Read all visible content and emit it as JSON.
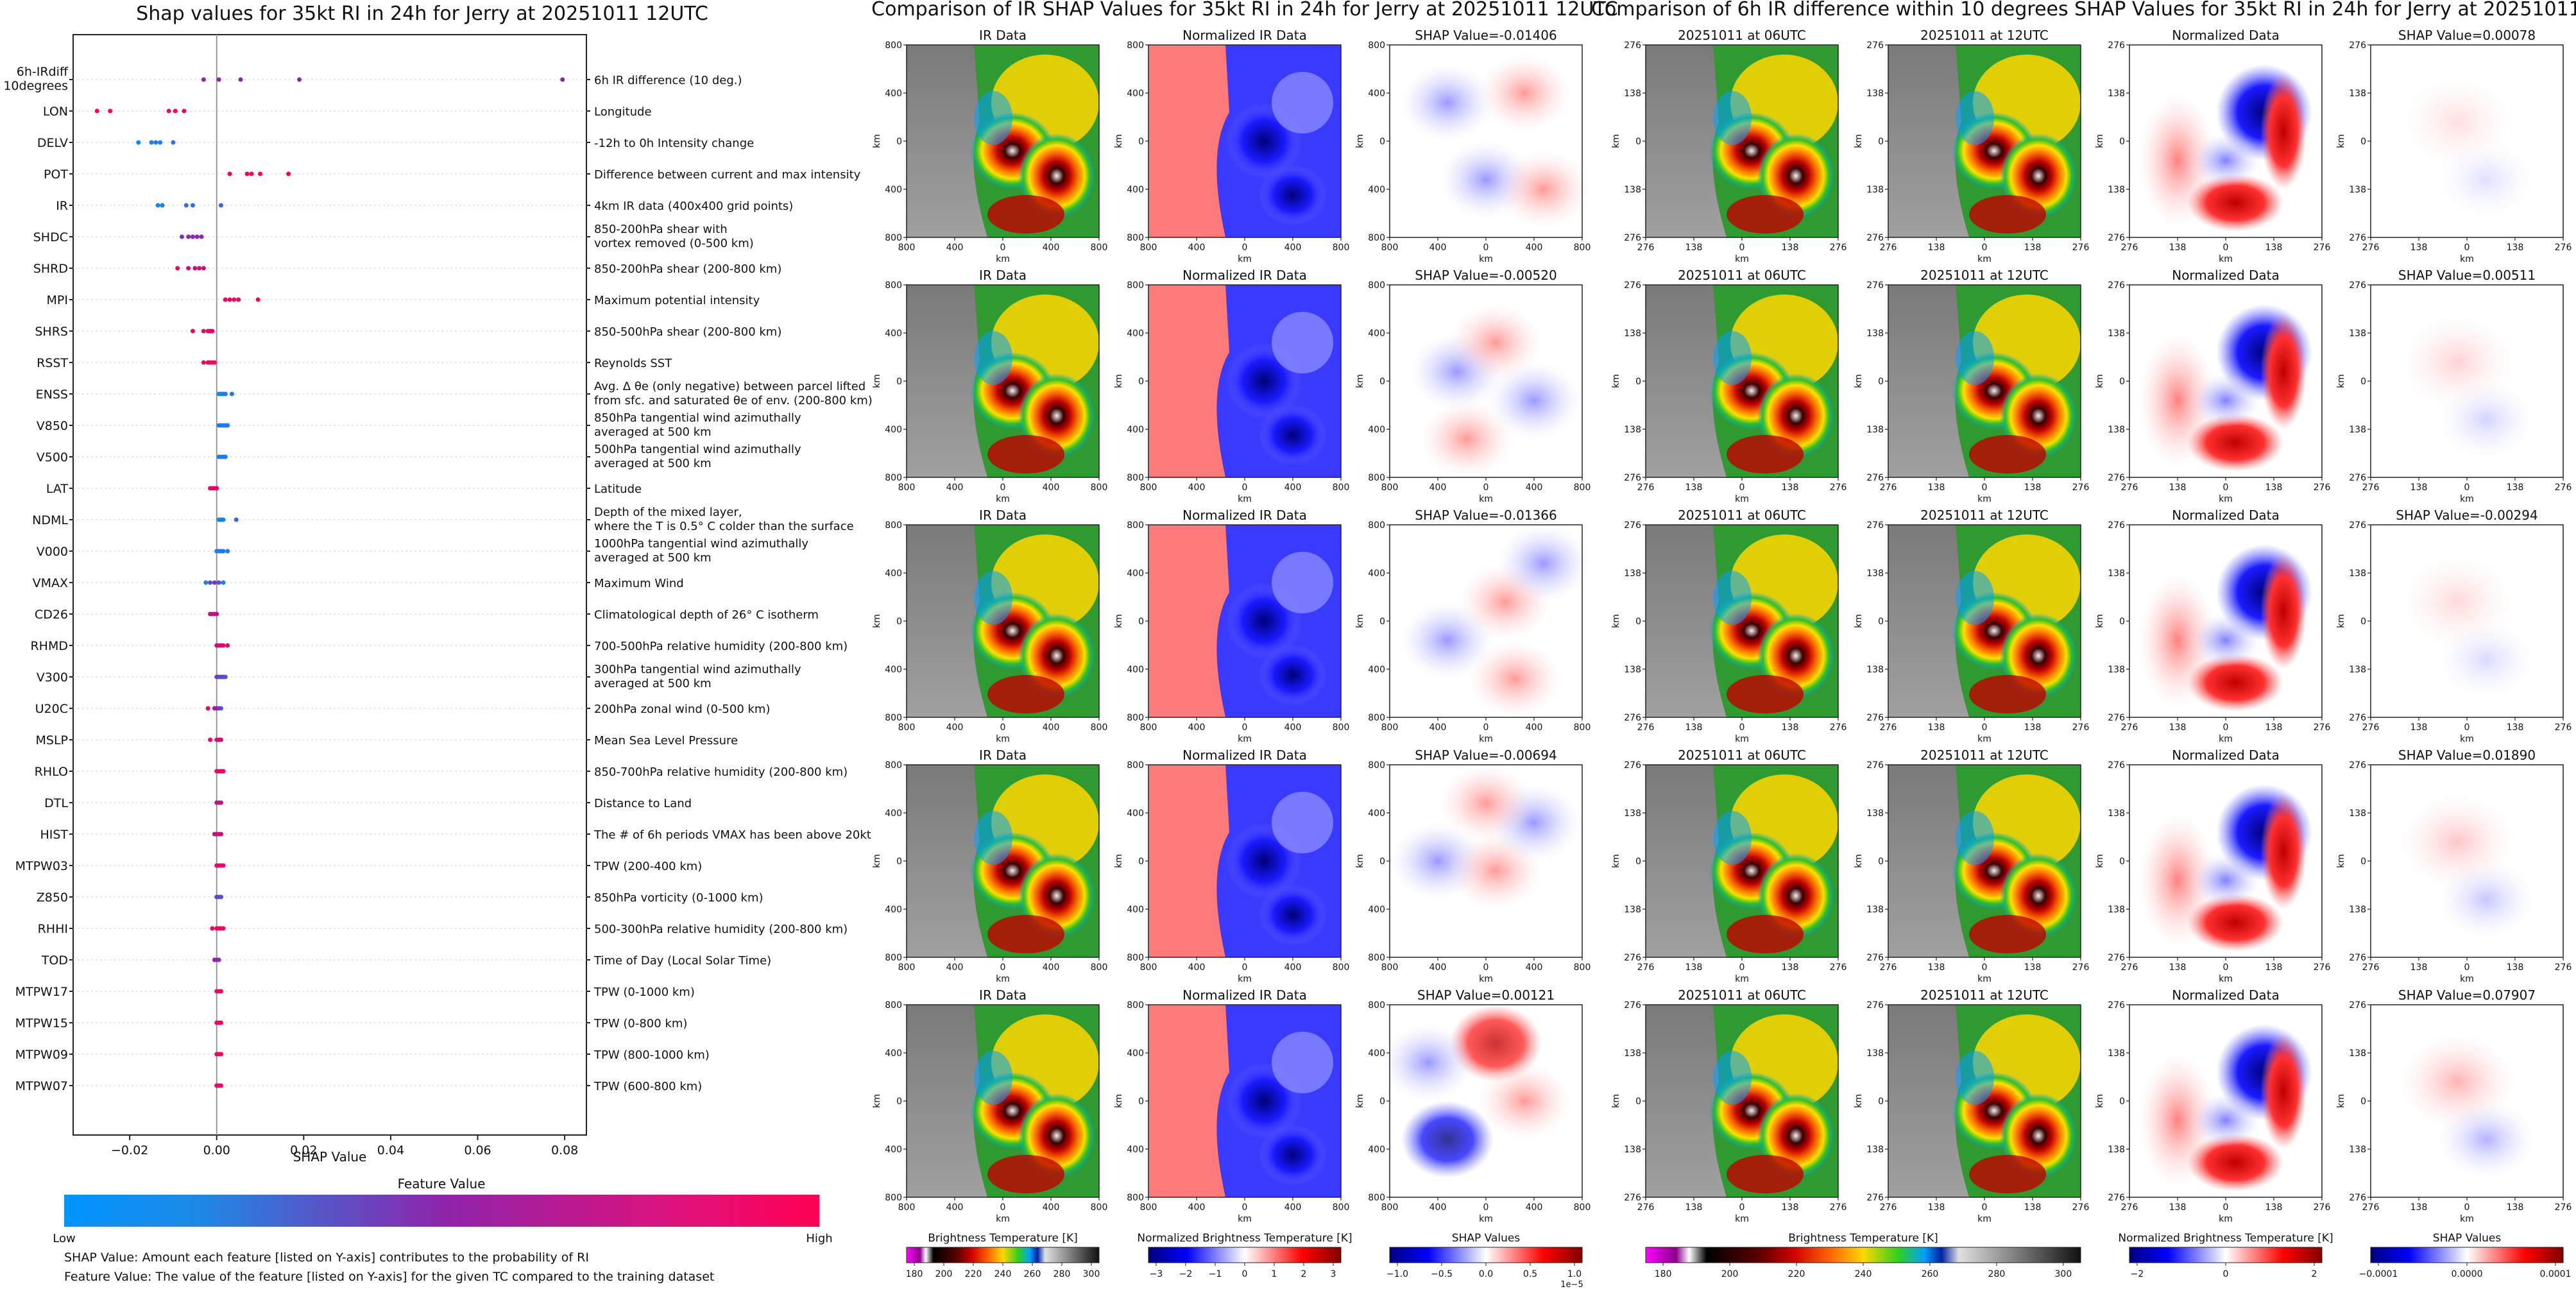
{
  "summary_plot": {
    "title": "Shap values for 35kt RI in 24h for Jerry at 20251011 12UTC",
    "xlabel": "SHAP Value",
    "xticks": [
      "−0.02",
      "0.00",
      "0.02",
      "0.04",
      "0.06",
      "0.08"
    ],
    "colorbar_title": "Feature Value",
    "colorbar_low": "Low",
    "colorbar_high": "High",
    "note_shap": "SHAP Value: Amount each feature [listed on Y-axis] contributes to the probability of RI",
    "note_feature": "Feature Value: The value of the feature [listed on Y-axis] for the given TC compared to the training dataset"
  },
  "ir_panel": {
    "title": "Comparison of IR SHAP Values for 35kt RI in 24h for Jerry at 20251011 12UTC",
    "col1_title": "IR Data",
    "col2_title": "Normalized IR Data",
    "shap_titles": [
      "SHAP Value=-0.01406",
      "SHAP Value=-0.00520",
      "SHAP Value=-0.01366",
      "SHAP Value=-0.00694",
      "SHAP Value=0.00121"
    ],
    "ticks": [
      "800",
      "400",
      "0",
      "400",
      "800"
    ],
    "axis_unit": "km",
    "cb1_label": "Brightness Temperature [K]",
    "cb1_ticks": [
      "180",
      "200",
      "220",
      "240",
      "260",
      "280",
      "300"
    ],
    "cb2_label": "Normalized Brightness Temperature [K]",
    "cb2_ticks": [
      "−3",
      "−2",
      "−1",
      "0",
      "1",
      "2",
      "3"
    ],
    "cb3_label": "SHAP Values",
    "cb3_ticks": [
      "−1.0",
      "−0.5",
      "0.0",
      "0.5",
      "1.0"
    ],
    "cb3_exp": "1e−5"
  },
  "diff_panel": {
    "title": "Comparison of 6h IR difference within 10 degrees SHAP Values for 35kt RI in 24h for Jerry at 20251011 12UTC",
    "col1_title": "20251011 at 06UTC",
    "col2_title": "20251011 at 12UTC",
    "col3_title": "Normalized Data",
    "shap_titles": [
      "SHAP Value=0.00078",
      "SHAP Value=0.00511",
      "SHAP Value=-0.00294",
      "SHAP Value=0.01890",
      "SHAP Value=0.07907"
    ],
    "ticks": [
      "276",
      "138",
      "0",
      "138",
      "276"
    ],
    "axis_unit": "km",
    "cb1_label": "Brightness Temperature [K]",
    "cb1_ticks": [
      "180",
      "200",
      "220",
      "240",
      "260",
      "280",
      "300"
    ],
    "cb2_label": "Normalized Brightness Temperature [K]",
    "cb2_ticks": [
      "−2",
      "0",
      "2"
    ],
    "cb3_label": "SHAP Values",
    "cb3_ticks": [
      "−0.0001",
      "0.0000",
      "0.0001"
    ]
  },
  "colors": {
    "low": "#1e88e5",
    "mid": "#8e24aa",
    "high": "#ff0052",
    "zero_line": "#999999"
  },
  "chart_data": [
    {
      "type": "scatter",
      "title": "Shap values for 35kt RI in 24h for Jerry at 20251011 12UTC",
      "xlabel": "SHAP Value",
      "xlim": [
        -0.033,
        0.085
      ],
      "features": [
        {
          "name": "6h-IRdiff\n10degrees",
          "desc": "6h IR difference (10 deg.)",
          "points": [
            [
              -0.003,
              0.5
            ],
            [
              0.0005,
              0.5
            ],
            [
              0.0055,
              0.5
            ],
            [
              0.019,
              0.5
            ],
            [
              0.0795,
              0.5
            ]
          ]
        },
        {
          "name": "LON",
          "desc": "Longitude",
          "points": [
            [
              -0.0275,
              0.98
            ],
            [
              -0.0245,
              0.95
            ],
            [
              -0.011,
              0.9
            ],
            [
              -0.0095,
              0.92
            ],
            [
              -0.0075,
              0.9
            ]
          ]
        },
        {
          "name": "DELV",
          "desc": "-12h to 0h Intensity change",
          "points": [
            [
              -0.018,
              0.05
            ],
            [
              -0.015,
              0.1
            ],
            [
              -0.014,
              0.1
            ],
            [
              -0.013,
              0.12
            ],
            [
              -0.01,
              0.15
            ]
          ]
        },
        {
          "name": "POT",
          "desc": "Difference between current and max intensity",
          "points": [
            [
              0.003,
              0.9
            ],
            [
              0.007,
              0.95
            ],
            [
              0.008,
              0.92
            ],
            [
              0.01,
              0.95
            ],
            [
              0.0165,
              0.98
            ]
          ]
        },
        {
          "name": "IR",
          "desc": "4km IR data (400x400 grid points)",
          "points": [
            [
              -0.0135,
              0.08
            ],
            [
              -0.0125,
              0.1
            ],
            [
              -0.007,
              0.15
            ],
            [
              -0.0055,
              0.15
            ],
            [
              0.001,
              0.2
            ]
          ]
        },
        {
          "name": "SHDC",
          "desc": "850-200hPa shear with\nvortex removed (0-500 km)",
          "points": [
            [
              -0.008,
              0.45
            ],
            [
              -0.0065,
              0.45
            ],
            [
              -0.0055,
              0.5
            ],
            [
              -0.0045,
              0.48
            ],
            [
              -0.0035,
              0.45
            ]
          ]
        },
        {
          "name": "SHRD",
          "desc": "850-200hPa shear (200-800 km)",
          "points": [
            [
              -0.009,
              0.95
            ],
            [
              -0.0065,
              0.8
            ],
            [
              -0.005,
              0.75
            ],
            [
              -0.004,
              0.7
            ],
            [
              -0.003,
              0.8
            ]
          ]
        },
        {
          "name": "MPI",
          "desc": "Maximum potential intensity",
          "points": [
            [
              0.002,
              0.9
            ],
            [
              0.003,
              0.9
            ],
            [
              0.004,
              0.85
            ],
            [
              0.005,
              0.9
            ],
            [
              0.0095,
              0.95
            ]
          ]
        },
        {
          "name": "SHRS",
          "desc": "850-500hPa shear (200-800 km)",
          "points": [
            [
              -0.0055,
              0.9
            ],
            [
              -0.003,
              0.85
            ],
            [
              -0.002,
              0.85
            ],
            [
              -0.0015,
              0.8
            ],
            [
              -0.001,
              0.85
            ]
          ]
        },
        {
          "name": "RSST",
          "desc": "Reynolds SST",
          "points": [
            [
              -0.003,
              0.95
            ],
            [
              -0.002,
              0.95
            ],
            [
              -0.0015,
              0.9
            ],
            [
              -0.001,
              0.92
            ],
            [
              -0.0005,
              0.95
            ]
          ]
        },
        {
          "name": "ENSS",
          "desc": "Avg. Δ θe (only negative) between parcel lifted\nfrom sfc. and saturated θe of env. (200-800 km)",
          "points": [
            [
              0.0005,
              0.05
            ],
            [
              0.001,
              0.05
            ],
            [
              0.0015,
              0.1
            ],
            [
              0.002,
              0.1
            ],
            [
              0.0035,
              0.15
            ]
          ]
        },
        {
          "name": "V850",
          "desc": "850hPa tangential wind azimuthally\naveraged at 500 km",
          "points": [
            [
              0.0005,
              0.1
            ],
            [
              0.001,
              0.1
            ],
            [
              0.0015,
              0.12
            ],
            [
              0.002,
              0.1
            ],
            [
              0.0025,
              0.12
            ]
          ]
        },
        {
          "name": "V500",
          "desc": "500hPa tangential wind azimuthally\naveraged at 500 km",
          "points": [
            [
              0.0005,
              0.1
            ],
            [
              0.001,
              0.1
            ],
            [
              0.0015,
              0.12
            ],
            [
              0.002,
              0.1
            ]
          ]
        },
        {
          "name": "LAT",
          "desc": "Latitude",
          "points": [
            [
              -0.0015,
              0.9
            ],
            [
              -0.001,
              0.88
            ],
            [
              -0.0005,
              0.85
            ],
            [
              0.0,
              0.88
            ]
          ]
        },
        {
          "name": "NDML",
          "desc": "Depth of the mixed layer,\nwhere the T is 0.5° C colder than the surface",
          "points": [
            [
              0.0005,
              0.05
            ],
            [
              0.001,
              0.1
            ],
            [
              0.0015,
              0.1
            ],
            [
              0.0045,
              0.2
            ]
          ]
        },
        {
          "name": "V000",
          "desc": "1000hPa tangential wind azimuthally\naveraged at 500 km",
          "points": [
            [
              0.0,
              0.1
            ],
            [
              0.0005,
              0.12
            ],
            [
              0.001,
              0.1
            ],
            [
              0.0015,
              0.1
            ],
            [
              0.0025,
              0.12
            ]
          ]
        },
        {
          "name": "VMAX",
          "desc": "Maximum Wind",
          "points": [
            [
              -0.0025,
              0.1
            ],
            [
              -0.0015,
              0.3
            ],
            [
              -0.0005,
              0.4
            ],
            [
              0.0005,
              0.3
            ],
            [
              0.0015,
              0.1
            ]
          ]
        },
        {
          "name": "CD26",
          "desc": "Climatological depth of 26° C isotherm",
          "points": [
            [
              -0.0015,
              0.75
            ],
            [
              -0.001,
              0.7
            ],
            [
              -0.0005,
              0.7
            ],
            [
              0.0,
              0.7
            ]
          ]
        },
        {
          "name": "RHMD",
          "desc": "700-500hPa relative humidity (200-800 km)",
          "points": [
            [
              0.0,
              0.8
            ],
            [
              0.0005,
              0.8
            ],
            [
              0.001,
              0.9
            ],
            [
              0.0015,
              0.8
            ],
            [
              0.0025,
              0.85
            ]
          ]
        },
        {
          "name": "V300",
          "desc": "300hPa tangential wind azimuthally\naveraged at 500 km",
          "points": [
            [
              0.0,
              0.4
            ],
            [
              0.0005,
              0.35
            ],
            [
              0.001,
              0.3
            ],
            [
              0.0015,
              0.35
            ],
            [
              0.002,
              0.3
            ]
          ]
        },
        {
          "name": "U20C",
          "desc": "200hPa zonal wind (0-500 km)",
          "points": [
            [
              -0.002,
              0.9
            ],
            [
              -0.0005,
              0.7
            ],
            [
              0.0,
              0.5
            ],
            [
              0.0005,
              0.4
            ],
            [
              0.001,
              0.3
            ]
          ]
        },
        {
          "name": "MSLP",
          "desc": "Mean Sea Level Pressure",
          "points": [
            [
              -0.0015,
              0.95
            ],
            [
              0.0,
              0.8
            ],
            [
              0.0005,
              0.8
            ],
            [
              0.001,
              0.75
            ]
          ]
        },
        {
          "name": "RHLO",
          "desc": "850-700hPa relative humidity (200-800 km)",
          "points": [
            [
              0.0,
              0.9
            ],
            [
              0.0005,
              0.92
            ],
            [
              0.001,
              0.9
            ],
            [
              0.0015,
              0.9
            ]
          ]
        },
        {
          "name": "DTL",
          "desc": "Distance to Land",
          "points": [
            [
              0.0,
              0.7
            ],
            [
              0.0005,
              0.7
            ],
            [
              0.001,
              0.65
            ]
          ]
        },
        {
          "name": "HIST",
          "desc": "The # of 6h periods VMAX has been above 20kt",
          "points": [
            [
              -0.0005,
              0.8
            ],
            [
              0.0,
              0.75
            ],
            [
              0.0005,
              0.8
            ],
            [
              0.001,
              0.75
            ]
          ]
        },
        {
          "name": "MTPW03",
          "desc": "TPW (200-400 km)",
          "points": [
            [
              0.0,
              0.9
            ],
            [
              0.0005,
              0.9
            ],
            [
              0.001,
              0.85
            ],
            [
              0.0015,
              0.9
            ]
          ]
        },
        {
          "name": "Z850",
          "desc": "850hPa vorticity (0-1000 km)",
          "points": [
            [
              0.0,
              0.4
            ],
            [
              0.0005,
              0.35
            ],
            [
              0.001,
              0.3
            ]
          ]
        },
        {
          "name": "RHHI",
          "desc": "500-300hPa relative humidity (200-800 km)",
          "points": [
            [
              -0.001,
              0.9
            ],
            [
              0.0,
              0.9
            ],
            [
              0.0005,
              0.92
            ],
            [
              0.001,
              0.9
            ],
            [
              0.0015,
              0.9
            ]
          ]
        },
        {
          "name": "TOD",
          "desc": "Time of Day (Local Solar Time)",
          "points": [
            [
              -0.0005,
              0.5
            ],
            [
              0.0,
              0.5
            ],
            [
              0.0005,
              0.45
            ]
          ]
        },
        {
          "name": "MTPW17",
          "desc": "TPW (0-1000 km)",
          "points": [
            [
              0.0,
              0.9
            ],
            [
              0.0005,
              0.9
            ],
            [
              0.001,
              0.9
            ]
          ]
        },
        {
          "name": "MTPW15",
          "desc": "TPW (0-800 km)",
          "points": [
            [
              0.0,
              0.9
            ],
            [
              0.0005,
              0.92
            ],
            [
              0.001,
              0.9
            ]
          ]
        },
        {
          "name": "MTPW09",
          "desc": "TPW (800-1000 km)",
          "points": [
            [
              0.0,
              0.9
            ],
            [
              0.0005,
              0.9
            ],
            [
              0.001,
              0.92
            ]
          ]
        },
        {
          "name": "MTPW07",
          "desc": "TPW (600-800 km)",
          "points": [
            [
              0.0,
              0.9
            ],
            [
              0.0005,
              0.92
            ],
            [
              0.001,
              0.9
            ]
          ]
        }
      ]
    }
  ]
}
